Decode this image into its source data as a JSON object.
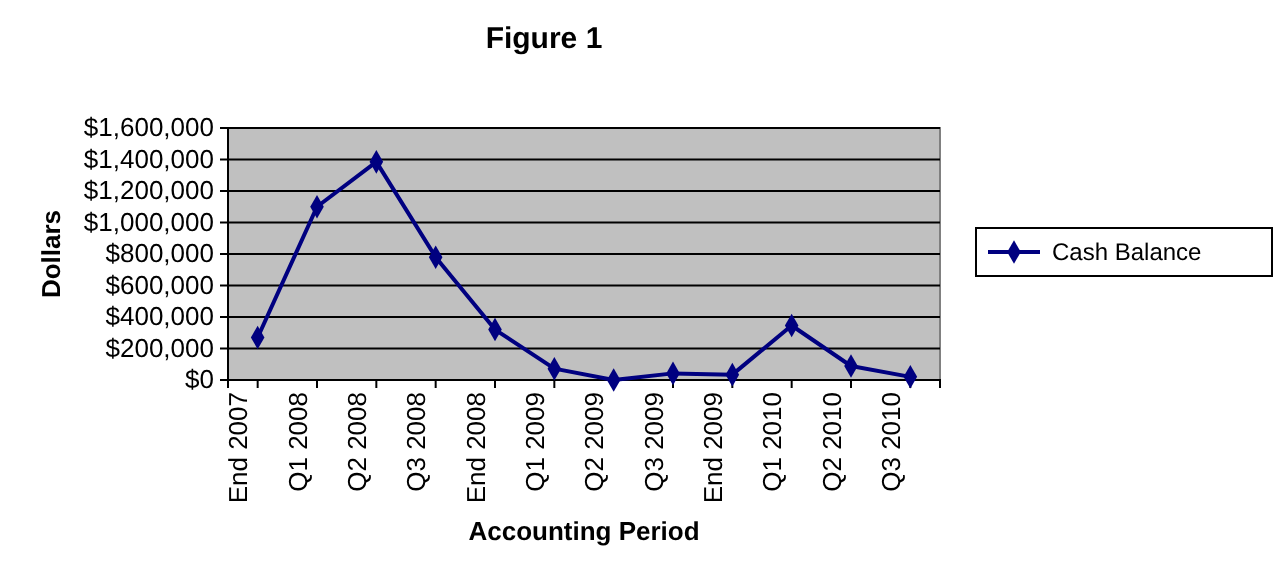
{
  "chart_data": {
    "type": "line",
    "title": "Figure 1",
    "xlabel": "Accounting Period",
    "ylabel": "Dollars",
    "categories": [
      "End 2007",
      "Q1 2008",
      "Q2 2008",
      "Q3 2008",
      "End 2008",
      "Q1 2009",
      "Q2 2009",
      "Q3 2009",
      "End 2009",
      "Q1 2010",
      "Q2 2010",
      "Q3 2010"
    ],
    "series": [
      {
        "name": "Cash Balance",
        "color": "#000080",
        "values": [
          270000,
          1100000,
          1385000,
          780000,
          320000,
          72000,
          0,
          42000,
          34000,
          346000,
          89000,
          20000
        ]
      }
    ],
    "ylim": [
      0,
      1600000
    ],
    "yticks": [
      {
        "value": 0,
        "label": "$0"
      },
      {
        "value": 200000,
        "label": "$200,000"
      },
      {
        "value": 400000,
        "label": "$400,000"
      },
      {
        "value": 600000,
        "label": "$600,000"
      },
      {
        "value": 800000,
        "label": "$800,000"
      },
      {
        "value": 1000000,
        "label": "$1,000,000"
      },
      {
        "value": 1200000,
        "label": "$1,200,000"
      },
      {
        "value": 1400000,
        "label": "$1,400,000"
      },
      {
        "value": 1600000,
        "label": "$1,600,000"
      }
    ],
    "grid": "y",
    "legend": "right",
    "marker": "diamond",
    "line_style": "solid"
  }
}
